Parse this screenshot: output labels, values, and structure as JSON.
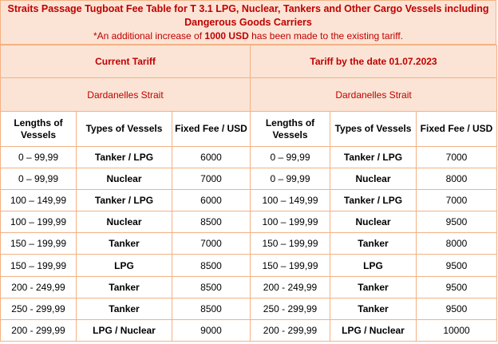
{
  "title": "Straits Passage Tugboat Fee Table for T 3.1 LPG, Nuclear, Tankers and Other Cargo Vessels including Dangerous Goods Carriers",
  "note_prefix": "*An additional increase of ",
  "note_amount": "1000 USD",
  "note_suffix": " has been made to the existing tariff.",
  "current": {
    "heading": "Current Tariff",
    "strait": "Dardanelles Strait",
    "columns": [
      "Lengths of Vessels",
      "Types of Vessels",
      "Fixed Fee / USD"
    ],
    "rows": [
      [
        "0 – 99,99",
        "Tanker / LPG",
        "6000"
      ],
      [
        "0 – 99,99",
        "Nuclear",
        "7000"
      ],
      [
        "100 – 149,99",
        "Tanker / LPG",
        "6000"
      ],
      [
        "100 – 199,99",
        "Nuclear",
        "8500"
      ],
      [
        "150 – 199,99",
        "Tanker",
        "7000"
      ],
      [
        "150 – 199,99",
        "LPG",
        "8500"
      ],
      [
        "200 - 249,99",
        "Tanker",
        "8500"
      ],
      [
        "250 - 299,99",
        "Tanker",
        "8500"
      ],
      [
        "200 - 299,99",
        "LPG / Nuclear",
        "9000"
      ]
    ]
  },
  "future": {
    "heading": "Tariff by the date 01.07.2023",
    "strait": "Dardanelles Strait",
    "columns": [
      "Lengths of Vessels",
      "Types of Vessels",
      "Fixed Fee / USD"
    ],
    "rows": [
      [
        "0 – 99,99",
        "Tanker / LPG",
        "7000"
      ],
      [
        "0 – 99,99",
        "Nuclear",
        "8000"
      ],
      [
        "100 – 149,99",
        "Tanker / LPG",
        "7000"
      ],
      [
        "100 – 199,99",
        "Nuclear",
        "9500"
      ],
      [
        "150 – 199,99",
        "Tanker",
        "8000"
      ],
      [
        "150 – 199,99",
        "LPG",
        "9500"
      ],
      [
        "200 - 249,99",
        "Tanker",
        "9500"
      ],
      [
        "250 - 299,99",
        "Tanker",
        "9500"
      ],
      [
        "200 - 299,99",
        "LPG / Nuclear",
        "10000"
      ]
    ]
  }
}
